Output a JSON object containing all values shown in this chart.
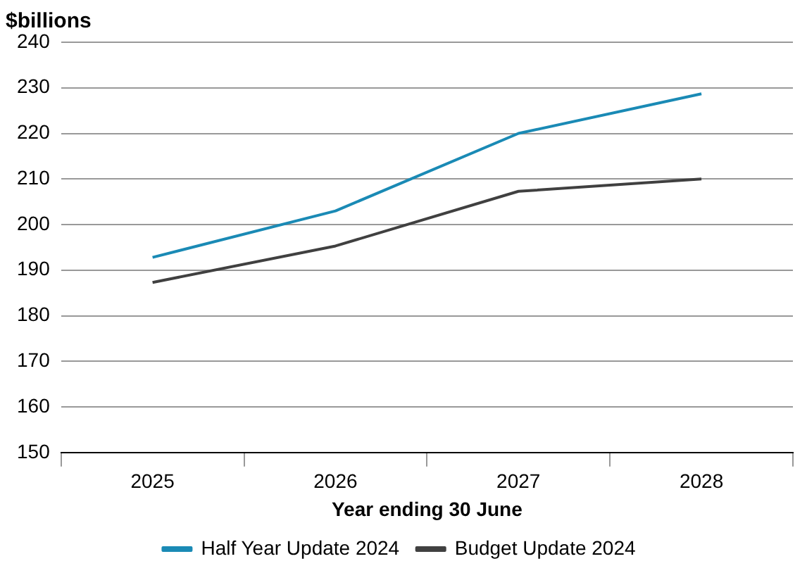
{
  "chart_data": {
    "type": "line",
    "ylabel": "$billions",
    "xlabel": "Year ending 30 June",
    "categories": [
      "2025",
      "2026",
      "2027",
      "2028"
    ],
    "series": [
      {
        "name": "Half Year Update 2024",
        "color": "#1a8ab5",
        "values": [
          192.8,
          203,
          220,
          228.7
        ]
      },
      {
        "name": "Budget Update 2024",
        "color": "#404040",
        "values": [
          187.3,
          195.3,
          207.3,
          210
        ]
      }
    ],
    "ylim": [
      150,
      240
    ],
    "yticks": [
      150,
      160,
      170,
      180,
      190,
      200,
      210,
      220,
      230,
      240
    ],
    "grid": "y",
    "legend": "bottom",
    "marker": "none",
    "line_style": "solid"
  }
}
